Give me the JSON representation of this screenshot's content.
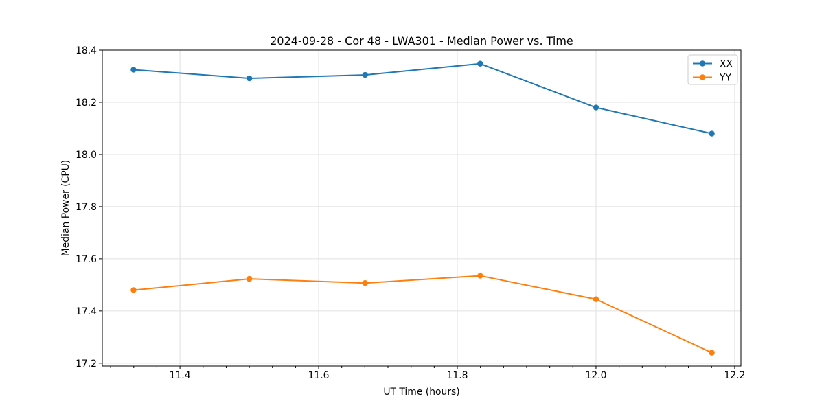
{
  "chart_data": {
    "type": "line",
    "title": "2024-09-28 - Cor 48 - LWA301 - Median Power vs. Time",
    "xlabel": "UT Time (hours)",
    "ylabel": "Median Power (CPU)",
    "x": [
      11.333,
      11.5,
      11.667,
      11.833,
      12.0,
      12.167
    ],
    "series": [
      {
        "name": "XX",
        "color": "#1f77b4",
        "marker": "circle",
        "values": [
          18.325,
          18.292,
          18.305,
          18.348,
          18.18,
          18.08
        ]
      },
      {
        "name": "YY",
        "color": "#ff7f0e",
        "marker": "circle",
        "values": [
          17.48,
          17.523,
          17.507,
          17.535,
          17.445,
          17.24
        ]
      }
    ],
    "xlim": [
      11.288,
      12.209
    ],
    "ylim": [
      17.189,
      18.4
    ],
    "xticks": {
      "values": [
        11.4,
        11.6,
        11.8,
        12.0,
        12.2
      ],
      "labels": [
        "11.4",
        "11.6",
        "11.8",
        "12.0",
        "12.2"
      ]
    },
    "yticks": {
      "values": [
        17.2,
        17.4,
        17.6,
        17.8,
        18.0,
        18.2,
        18.4
      ],
      "labels": [
        "17.2",
        "17.4",
        "17.6",
        "17.8",
        "18.0",
        "18.2",
        "18.4"
      ]
    },
    "x_minor_tick_start": 11.3,
    "x_minor_tick_step": 0.0333333,
    "grid": true,
    "grid_color": "#e0e0e0",
    "axis_color": "#000000",
    "legend": {
      "position": "upper right",
      "entries": [
        "XX",
        "YY"
      ],
      "border_color": "#cccccc",
      "background": "#ffffff"
    }
  }
}
